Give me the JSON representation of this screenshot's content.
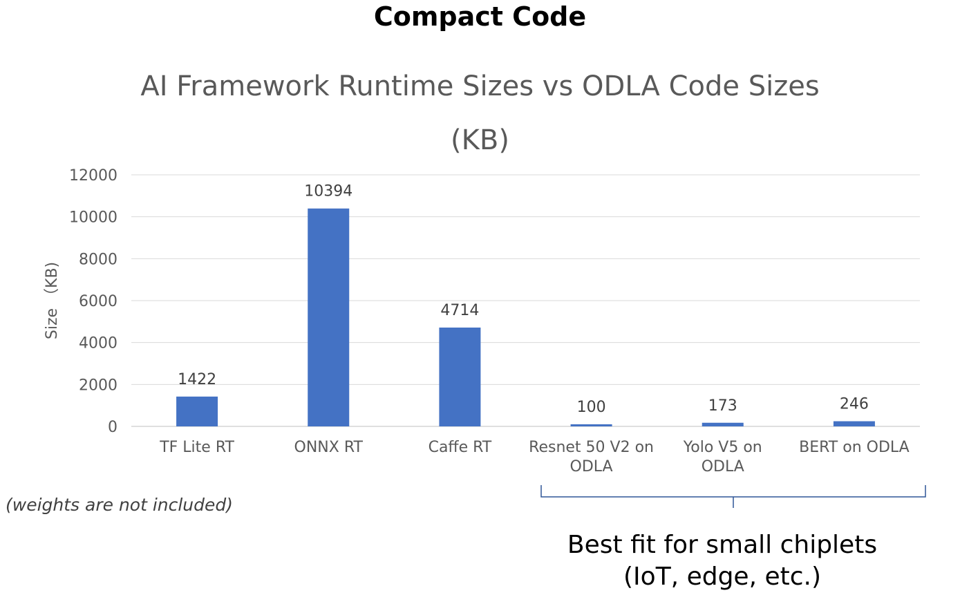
{
  "slide": {
    "title": "Compact Code",
    "note": "(weights  are not included)",
    "callout_line1": "Best fit for small chiplets",
    "callout_line2": "(IoT, edge, etc.)"
  },
  "chart_data": {
    "type": "bar",
    "title_line1": "AI Framework Runtime Sizes vs ODLA Code Sizes",
    "title_line2": "(KB)",
    "ylabel": "Size （KB)",
    "xlabel": "",
    "ylim": [
      0,
      12000
    ],
    "yticks": [
      0,
      2000,
      4000,
      6000,
      8000,
      10000,
      12000
    ],
    "grid": true,
    "bar_color": "#4472C4",
    "categories": [
      [
        "TF Lite RT"
      ],
      [
        "ONNX RT"
      ],
      [
        "Caffe RT"
      ],
      [
        "Resnet 50 V2 on",
        "ODLA"
      ],
      [
        "Yolo V5 on",
        "ODLA"
      ],
      [
        "BERT on ODLA"
      ]
    ],
    "values": [
      1422,
      10394,
      4714,
      100,
      173,
      246
    ]
  }
}
